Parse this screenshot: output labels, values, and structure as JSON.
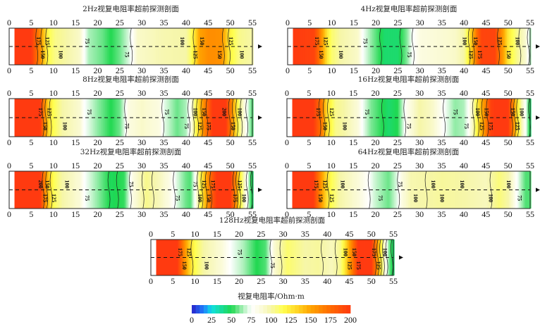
{
  "chart_data": {
    "type": "heatmap",
    "x_ticks": [
      "0",
      "5",
      "10",
      "15",
      "20",
      "25",
      "30",
      "35",
      "40",
      "45",
      "50",
      "55"
    ],
    "xlim": [
      0,
      55
    ],
    "colorbar": {
      "title": "视复电阻率/Ohm·m",
      "ticks": [
        "0",
        "25",
        "50",
        "75",
        "100",
        "125",
        "150",
        "175",
        "200"
      ],
      "range": [
        0,
        200
      ],
      "stops": [
        [
          0,
          "#2a20c8"
        ],
        [
          15,
          "#1f7fff"
        ],
        [
          25,
          "#10e0e0"
        ],
        [
          50,
          "#20d850"
        ],
        [
          68,
          "#c8f5d0"
        ],
        [
          75,
          "#ffffff"
        ],
        [
          90,
          "#fafad2"
        ],
        [
          100,
          "#f6f6a8"
        ],
        [
          115,
          "#ffff50"
        ],
        [
          135,
          "#ffd020"
        ],
        [
          150,
          "#ffa400"
        ],
        [
          175,
          "#ff6a00"
        ],
        [
          200,
          "#ff3a10"
        ]
      ]
    },
    "contour_levels": [
      25,
      50,
      75,
      100,
      125,
      150,
      175
    ],
    "panels": [
      {
        "title": "2Hz视复电阻率超前探测剖面",
        "profile": [
          [
            1.2,
            200
          ],
          [
            5,
            200
          ],
          [
            6,
            180
          ],
          [
            7,
            160
          ],
          [
            8,
            135
          ],
          [
            9,
            115
          ],
          [
            10.5,
            105
          ],
          [
            13,
            100
          ],
          [
            16,
            92
          ],
          [
            17,
            75
          ],
          [
            18,
            65
          ],
          [
            21,
            58
          ],
          [
            23,
            50
          ],
          [
            25,
            58
          ],
          [
            27,
            70
          ],
          [
            28,
            78
          ],
          [
            29,
            92
          ],
          [
            35,
            98
          ],
          [
            40,
            100
          ],
          [
            41,
            110
          ],
          [
            42,
            128
          ],
          [
            43,
            150
          ],
          [
            45,
            160
          ],
          [
            48,
            158
          ],
          [
            49,
            140
          ],
          [
            50,
            120
          ],
          [
            52,
            105
          ],
          [
            55,
            100
          ]
        ],
        "labels": [
          [
            6.5,
            "175"
          ],
          [
            7.5,
            "150"
          ],
          [
            8.5,
            "125"
          ],
          [
            11.5,
            "100"
          ],
          [
            17.5,
            "75"
          ],
          [
            26.5,
            "75"
          ],
          [
            39,
            "100"
          ],
          [
            42,
            "125"
          ],
          [
            43.5,
            "150"
          ],
          [
            47.5,
            "150"
          ],
          [
            50,
            "125"
          ],
          [
            52.5,
            "100"
          ]
        ]
      },
      {
        "title": "4Hz视复电阻率超前探测剖面",
        "profile": [
          [
            1.2,
            200
          ],
          [
            6,
            195
          ],
          [
            7,
            175
          ],
          [
            8,
            150
          ],
          [
            9,
            125
          ],
          [
            10,
            110
          ],
          [
            12,
            100
          ],
          [
            16,
            92
          ],
          [
            17,
            75
          ],
          [
            19,
            62
          ],
          [
            22,
            45
          ],
          [
            25,
            45
          ],
          [
            27,
            60
          ],
          [
            28,
            72
          ],
          [
            30,
            85
          ],
          [
            38,
            92
          ],
          [
            40,
            100
          ],
          [
            41,
            120
          ],
          [
            42,
            145
          ],
          [
            43,
            175
          ],
          [
            44,
            195
          ],
          [
            47,
            195
          ],
          [
            48,
            170
          ],
          [
            49,
            150
          ],
          [
            50,
            125
          ],
          [
            52,
            105
          ],
          [
            54,
            90
          ],
          [
            55,
            65
          ]
        ],
        "labels": [
          [
            6.5,
            "175"
          ],
          [
            7.5,
            "150"
          ],
          [
            8.5,
            "125"
          ],
          [
            12,
            "100"
          ],
          [
            17.5,
            "75"
          ],
          [
            27.5,
            "75"
          ],
          [
            40,
            "100"
          ],
          [
            41.5,
            "125"
          ],
          [
            42.5,
            "150"
          ],
          [
            43.5,
            "175"
          ],
          [
            48,
            "125"
          ],
          [
            50,
            "150"
          ],
          [
            52,
            "100"
          ]
        ]
      },
      {
        "title": "8Hz视复电阻率超前探测剖面",
        "profile": [
          [
            1.2,
            200
          ],
          [
            7,
            200
          ],
          [
            8,
            160
          ],
          [
            9,
            130
          ],
          [
            10,
            115
          ],
          [
            12,
            100
          ],
          [
            16,
            90
          ],
          [
            17,
            75
          ],
          [
            20,
            62
          ],
          [
            23,
            50
          ],
          [
            25,
            58
          ],
          [
            26,
            70
          ],
          [
            27,
            85
          ],
          [
            30,
            92
          ],
          [
            34,
            85
          ],
          [
            35,
            72
          ],
          [
            38,
            58
          ],
          [
            40,
            65
          ],
          [
            41,
            80
          ],
          [
            42,
            110
          ],
          [
            43,
            135
          ],
          [
            44,
            160
          ],
          [
            45,
            180
          ],
          [
            46,
            200
          ],
          [
            49,
            200
          ],
          [
            50,
            170
          ],
          [
            51,
            140
          ],
          [
            52,
            110
          ],
          [
            53,
            90
          ],
          [
            54,
            70
          ],
          [
            55,
            55
          ]
        ],
        "labels": [
          [
            7,
            "175"
          ],
          [
            8,
            "150"
          ],
          [
            9,
            "125"
          ],
          [
            12.5,
            "100"
          ],
          [
            18,
            "75"
          ],
          [
            26.5,
            "75"
          ],
          [
            35.5,
            "75"
          ],
          [
            40,
            "75"
          ],
          [
            42,
            "100"
          ],
          [
            43,
            "125"
          ],
          [
            44,
            "150"
          ],
          [
            45,
            "175"
          ],
          [
            48.5,
            "200"
          ],
          [
            50.5,
            "150"
          ],
          [
            52,
            "100"
          ]
        ]
      },
      {
        "title": "16Hz视复电阻率超前探测剖面",
        "profile": [
          [
            1.2,
            200
          ],
          [
            6,
            200
          ],
          [
            8,
            165
          ],
          [
            9,
            130
          ],
          [
            11,
            105
          ],
          [
            13,
            100
          ],
          [
            16,
            88
          ],
          [
            17,
            75
          ],
          [
            19,
            60
          ],
          [
            23,
            45
          ],
          [
            25,
            50
          ],
          [
            26,
            65
          ],
          [
            27,
            80
          ],
          [
            30,
            100
          ],
          [
            33,
            92
          ],
          [
            35,
            78
          ],
          [
            38,
            62
          ],
          [
            40,
            65
          ],
          [
            41,
            75
          ],
          [
            42,
            95
          ],
          [
            43,
            120
          ],
          [
            44,
            145
          ],
          [
            45,
            165
          ],
          [
            46,
            195
          ],
          [
            47,
            200
          ],
          [
            50,
            200
          ],
          [
            51,
            170
          ],
          [
            52,
            130
          ],
          [
            53,
            100
          ],
          [
            54,
            75
          ],
          [
            55,
            45
          ]
        ],
        "labels": [
          [
            7,
            "175"
          ],
          [
            8.5,
            "150"
          ],
          [
            10,
            "125"
          ],
          [
            13,
            "100"
          ],
          [
            18,
            "75"
          ],
          [
            27.5,
            "75"
          ],
          [
            38,
            "75"
          ],
          [
            40.5,
            "75"
          ],
          [
            43,
            "100"
          ],
          [
            44,
            "125"
          ],
          [
            45,
            "150"
          ],
          [
            46,
            "175"
          ],
          [
            51,
            "150"
          ],
          [
            52,
            "125"
          ],
          [
            53,
            "100"
          ]
        ]
      },
      {
        "title": "32Hz视复电阻率超前探测剖面",
        "profile": [
          [
            1.2,
            200
          ],
          [
            7,
            200
          ],
          [
            8,
            165
          ],
          [
            9,
            135
          ],
          [
            10,
            115
          ],
          [
            12,
            100
          ],
          [
            16,
            88
          ],
          [
            17,
            75
          ],
          [
            20,
            62
          ],
          [
            23,
            48
          ],
          [
            26,
            52
          ],
          [
            27,
            68
          ],
          [
            28,
            85
          ],
          [
            31,
            105
          ],
          [
            34,
            95
          ],
          [
            36,
            85
          ],
          [
            38,
            70
          ],
          [
            40,
            58
          ],
          [
            41,
            55
          ],
          [
            42,
            75
          ],
          [
            43,
            110
          ],
          [
            44,
            135
          ],
          [
            45,
            160
          ],
          [
            46,
            185
          ],
          [
            47,
            200
          ],
          [
            50,
            200
          ],
          [
            51,
            170
          ],
          [
            52,
            130
          ],
          [
            53,
            100
          ],
          [
            54,
            70
          ],
          [
            55,
            45
          ]
        ],
        "labels": [
          [
            7,
            "200"
          ],
          [
            8,
            "175"
          ],
          [
            8.5,
            "150"
          ],
          [
            10,
            "125"
          ],
          [
            13,
            "100"
          ],
          [
            17.5,
            "75"
          ],
          [
            27.5,
            "75"
          ],
          [
            38,
            "75"
          ],
          [
            42,
            "75"
          ],
          [
            43,
            "100"
          ],
          [
            44,
            "125"
          ],
          [
            45,
            "150"
          ],
          [
            46,
            "175"
          ],
          [
            51,
            "175"
          ],
          [
            52,
            "125"
          ],
          [
            53,
            "100"
          ]
        ]
      },
      {
        "title": "64Hz视复电阻率超前探测剖面",
        "profile": [
          [
            1.2,
            200
          ],
          [
            6,
            200
          ],
          [
            7,
            175
          ],
          [
            8,
            150
          ],
          [
            9,
            130
          ],
          [
            10,
            115
          ],
          [
            12,
            100
          ],
          [
            16,
            88
          ],
          [
            18,
            78
          ],
          [
            20,
            68
          ],
          [
            23,
            58
          ],
          [
            25,
            72
          ],
          [
            26,
            85
          ],
          [
            28,
            98
          ],
          [
            35,
            102
          ],
          [
            40,
            100
          ],
          [
            45,
            95
          ],
          [
            48,
            108
          ],
          [
            50,
            100
          ],
          [
            51,
            90
          ],
          [
            52,
            75
          ],
          [
            54,
            55
          ],
          [
            55,
            55
          ]
        ],
        "labels": [
          [
            6.5,
            "175"
          ],
          [
            7.5,
            "150"
          ],
          [
            8.5,
            "125"
          ],
          [
            10,
            "125"
          ],
          [
            12.5,
            "100"
          ],
          [
            21,
            "75"
          ],
          [
            25.5,
            "75"
          ],
          [
            29,
            "100"
          ],
          [
            33,
            "100"
          ],
          [
            35,
            "100"
          ],
          [
            39.5,
            "100"
          ],
          [
            46,
            "100"
          ],
          [
            50,
            "100"
          ],
          [
            52.5,
            "75"
          ]
        ]
      },
      {
        "title": "128Hz视复电阻率超前探测剖面",
        "profile": [
          [
            1.2,
            200
          ],
          [
            6,
            200
          ],
          [
            7,
            175
          ],
          [
            8,
            150
          ],
          [
            9,
            130
          ],
          [
            10,
            115
          ],
          [
            12,
            100
          ],
          [
            16,
            88
          ],
          [
            18,
            75
          ],
          [
            21,
            65
          ],
          [
            24,
            50
          ],
          [
            26,
            55
          ],
          [
            27,
            70
          ],
          [
            28,
            90
          ],
          [
            31,
            110
          ],
          [
            35,
            100
          ],
          [
            38,
            102
          ],
          [
            41,
            95
          ],
          [
            43,
            105
          ],
          [
            44,
            125
          ],
          [
            45,
            150
          ],
          [
            46,
            175
          ],
          [
            47,
            200
          ],
          [
            50,
            200
          ],
          [
            51,
            170
          ],
          [
            52,
            130
          ],
          [
            53,
            90
          ],
          [
            54,
            60
          ],
          [
            55,
            45
          ]
        ],
        "labels": [
          [
            6.5,
            "175"
          ],
          [
            7.5,
            "150"
          ],
          [
            8.5,
            "125"
          ],
          [
            12.5,
            "100"
          ],
          [
            20,
            "75"
          ],
          [
            27.5,
            "75"
          ],
          [
            44,
            "100"
          ],
          [
            45,
            "125"
          ],
          [
            46,
            "150"
          ],
          [
            47,
            "175"
          ],
          [
            50.5,
            "175"
          ],
          [
            51.5,
            "125"
          ],
          [
            53,
            "100"
          ]
        ]
      }
    ]
  }
}
